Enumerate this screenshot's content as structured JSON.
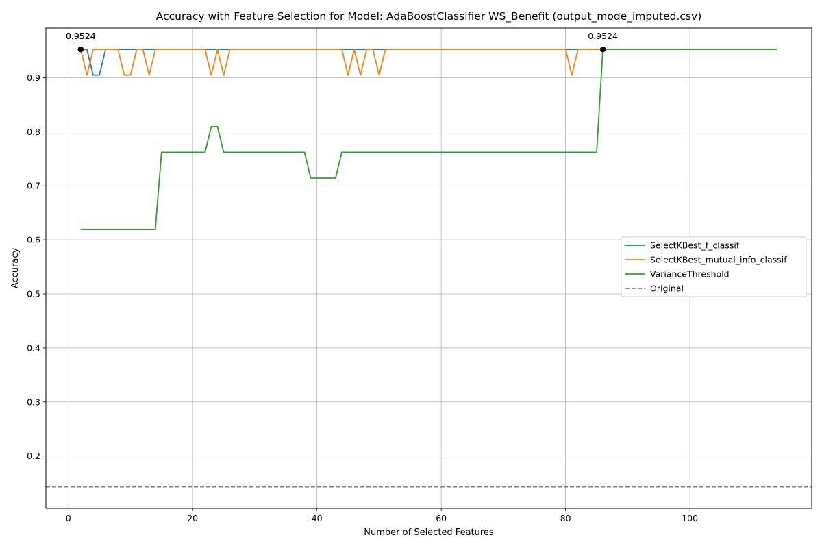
{
  "chart_data": {
    "type": "line",
    "title": "Accuracy with Feature Selection for Model: AdaBoostClassifier WS_Benefit (output_mode_imputed.csv)",
    "xlabel": "Number of Selected Features",
    "ylabel": "Accuracy",
    "xlim": [
      -3.6,
      119.6
    ],
    "ylim": [
      0.1032,
      0.9919
    ],
    "xticks": [
      0,
      20,
      40,
      60,
      80,
      100
    ],
    "yticks": [
      0.2,
      0.3,
      0.4,
      0.5,
      0.6,
      0.7,
      0.8,
      0.9
    ],
    "grid": true,
    "legend_position": "center-right",
    "series": [
      {
        "name": "SelectKBest_f_classif",
        "color": "#1f77b4",
        "style": "solid",
        "points": [
          [
            2,
            0.9524
          ],
          [
            3,
            0.9524
          ],
          [
            4,
            0.9048
          ],
          [
            5,
            0.9048
          ],
          [
            6,
            0.9524
          ],
          [
            7,
            0.9524
          ],
          [
            8,
            0.9524
          ],
          [
            9,
            0.9524
          ],
          [
            10,
            0.9524
          ],
          [
            11,
            0.9524
          ],
          [
            12,
            0.9524
          ],
          [
            13,
            0.9524
          ],
          [
            14,
            0.9524
          ],
          [
            20,
            0.9524
          ],
          [
            22,
            0.9524
          ],
          [
            23,
            0.9524
          ],
          [
            24,
            0.9524
          ],
          [
            25,
            0.9524
          ],
          [
            26,
            0.9524
          ],
          [
            44,
            0.9524
          ],
          [
            45,
            0.9524
          ],
          [
            50,
            0.9524
          ],
          [
            51,
            0.9524
          ],
          [
            80,
            0.9524
          ],
          [
            86,
            0.9524
          ]
        ]
      },
      {
        "name": "SelectKBest_mutual_info_classif",
        "color": "#ff7f0e",
        "style": "solid",
        "points": [
          [
            2,
            0.9524
          ],
          [
            3,
            0.9048
          ],
          [
            4,
            0.9524
          ],
          [
            5,
            0.9524
          ],
          [
            6,
            0.9524
          ],
          [
            7,
            0.9524
          ],
          [
            8,
            0.9524
          ],
          [
            9,
            0.9048
          ],
          [
            10,
            0.9048
          ],
          [
            11,
            0.9524
          ],
          [
            12,
            0.9524
          ],
          [
            13,
            0.9048
          ],
          [
            14,
            0.9524
          ],
          [
            22,
            0.9524
          ],
          [
            23,
            0.9048
          ],
          [
            24,
            0.9524
          ],
          [
            25,
            0.9048
          ],
          [
            26,
            0.9524
          ],
          [
            44,
            0.9524
          ],
          [
            45,
            0.9048
          ],
          [
            46,
            0.9524
          ],
          [
            47,
            0.9048
          ],
          [
            48,
            0.9524
          ],
          [
            49,
            0.9524
          ],
          [
            50,
            0.9048
          ],
          [
            51,
            0.9524
          ],
          [
            80,
            0.9524
          ],
          [
            81,
            0.9048
          ],
          [
            82,
            0.9524
          ],
          [
            86,
            0.9524
          ]
        ]
      },
      {
        "name": "VarianceThreshold",
        "color": "#2ca02c",
        "style": "solid",
        "points": [
          [
            2,
            0.619
          ],
          [
            14,
            0.619
          ],
          [
            15,
            0.7619
          ],
          [
            22,
            0.7619
          ],
          [
            23,
            0.8095
          ],
          [
            24,
            0.8095
          ],
          [
            25,
            0.7619
          ],
          [
            38,
            0.7619
          ],
          [
            39,
            0.7143
          ],
          [
            43,
            0.7143
          ],
          [
            44,
            0.7619
          ],
          [
            85,
            0.7619
          ],
          [
            86,
            0.9524
          ],
          [
            114,
            0.9524
          ]
        ]
      },
      {
        "name": "Original",
        "color": "#808080",
        "style": "dashed",
        "hline": 0.1429
      }
    ],
    "annotations": [
      {
        "x": 2,
        "y": 0.9524,
        "text": "0.9524"
      },
      {
        "x": 2,
        "y": 0.9524,
        "text": "0.9524"
      },
      {
        "x": 86,
        "y": 0.9524,
        "text": "0.9524"
      }
    ]
  }
}
